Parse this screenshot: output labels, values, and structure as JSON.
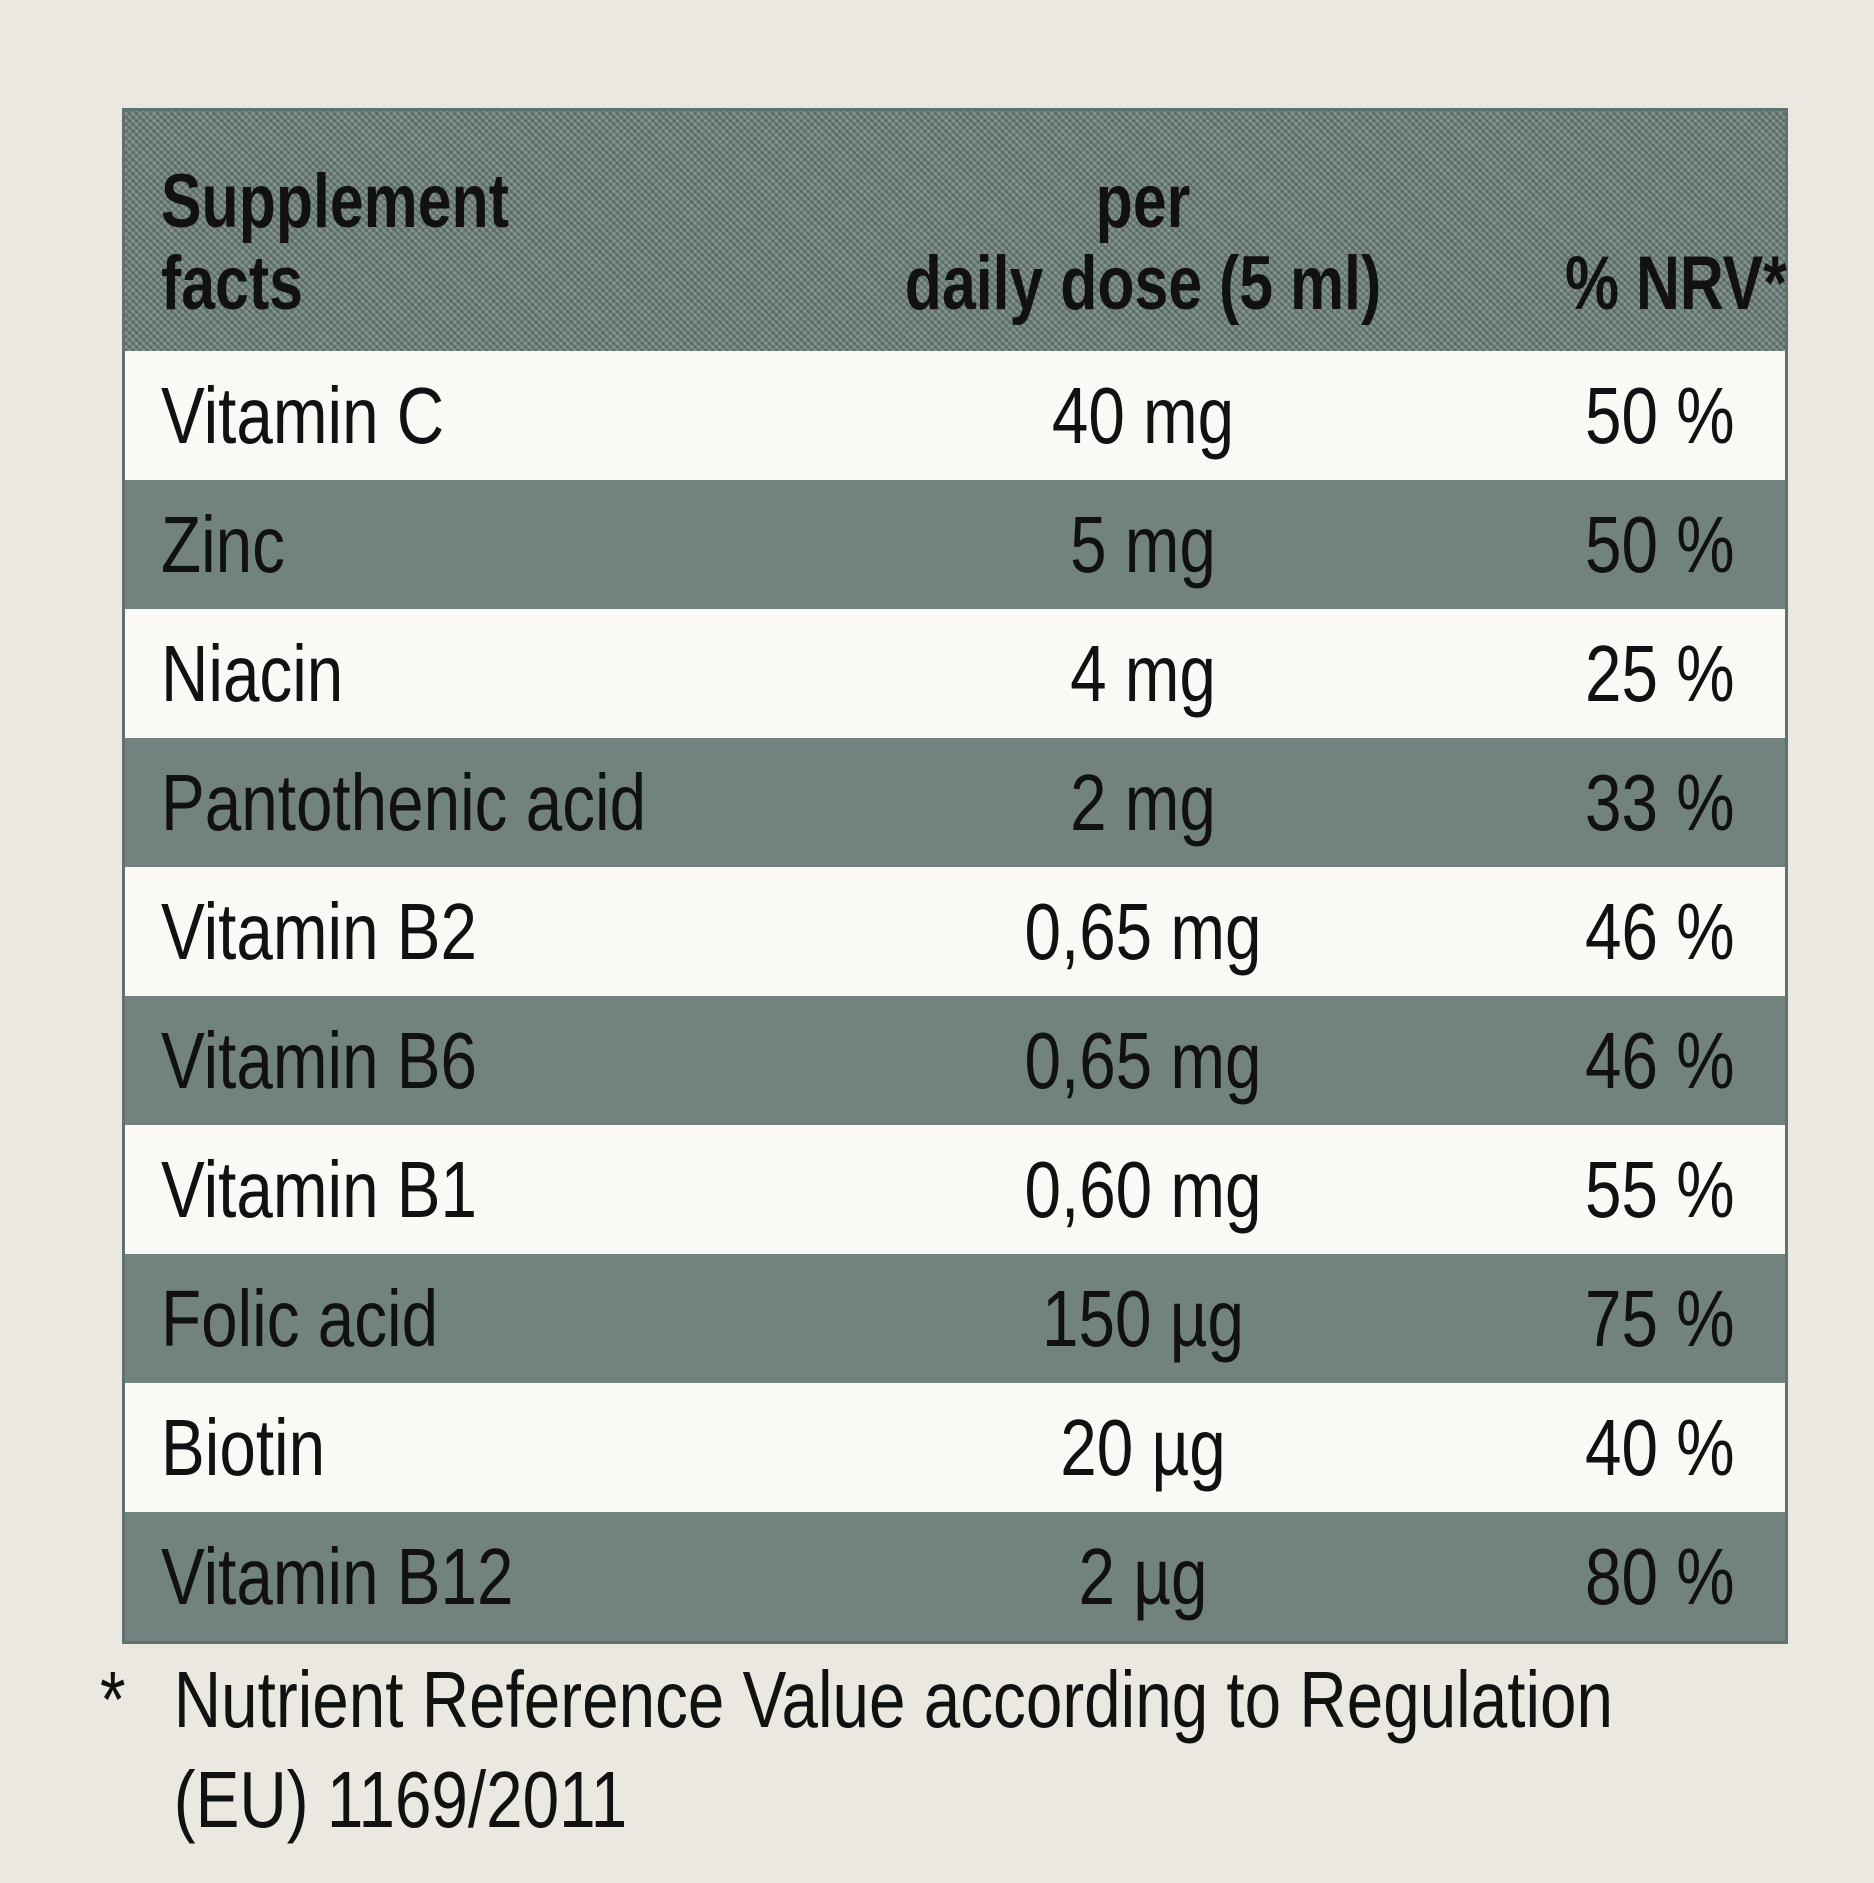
{
  "table": {
    "headers": {
      "name": [
        "Supplement",
        "facts"
      ],
      "amount": [
        "per",
        "daily dose (5 ml)"
      ],
      "nrv": "% NRV*"
    },
    "rows": [
      {
        "name": "Vitamin C",
        "amount": "40 mg",
        "nrv": "50 %"
      },
      {
        "name": "Zinc",
        "amount": "5 mg",
        "nrv": "50 %"
      },
      {
        "name": "Niacin",
        "amount": "4 mg",
        "nrv": "25 %"
      },
      {
        "name": "Pantothenic acid",
        "amount": "2 mg",
        "nrv": "33 %"
      },
      {
        "name": "Vitamin B2",
        "amount": "0,65 mg",
        "nrv": "46 %"
      },
      {
        "name": "Vitamin B6",
        "amount": "0,65 mg",
        "nrv": "46 %"
      },
      {
        "name": "Vitamin B1",
        "amount": "0,60 mg",
        "nrv": "55 %"
      },
      {
        "name": "Folic acid",
        "amount": "150 µg",
        "nrv": "75 %"
      },
      {
        "name": "Biotin",
        "amount": "20 µg",
        "nrv": "40 %"
      },
      {
        "name": "Vitamin B12",
        "amount": "2 µg",
        "nrv": "80 %"
      }
    ]
  },
  "footnote": {
    "marker": "*",
    "line1": "Nutrient Reference Value according to Regulation",
    "line2": "(EU) 1169/2011"
  }
}
